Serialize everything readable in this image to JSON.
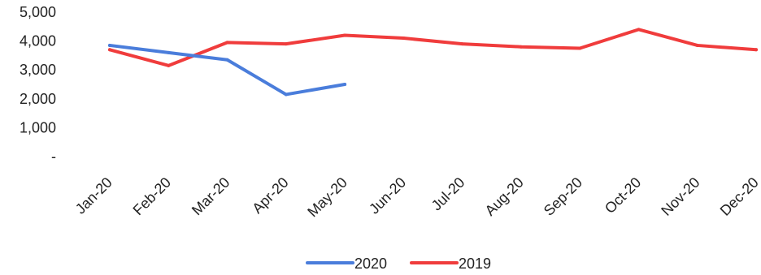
{
  "chart_data": {
    "type": "line",
    "categories": [
      "Jan-20",
      "Feb-20",
      "Mar-20",
      "Apr-20",
      "May-20",
      "Jun-20",
      "Jul-20",
      "Aug-20",
      "Sep-20",
      "Oct-20",
      "Nov-20",
      "Dec-20"
    ],
    "series": [
      {
        "name": "2020",
        "color": "#4a7ddb",
        "values": [
          3850,
          3600,
          3350,
          2150,
          2500,
          null,
          null,
          null,
          null,
          null,
          null,
          null
        ]
      },
      {
        "name": "2019",
        "color": "#f03c3c",
        "values": [
          3700,
          3150,
          3950,
          3900,
          4200,
          4100,
          3900,
          3800,
          3750,
          4400,
          3850,
          3700
        ]
      }
    ],
    "y_ticks": [
      "-",
      "1,000",
      "2,000",
      "3,000",
      "4,000",
      "5,000"
    ],
    "ylim": [
      0,
      5000
    ],
    "grid": false,
    "legend_position": "bottom",
    "title": "",
    "xlabel": "",
    "ylabel": ""
  }
}
